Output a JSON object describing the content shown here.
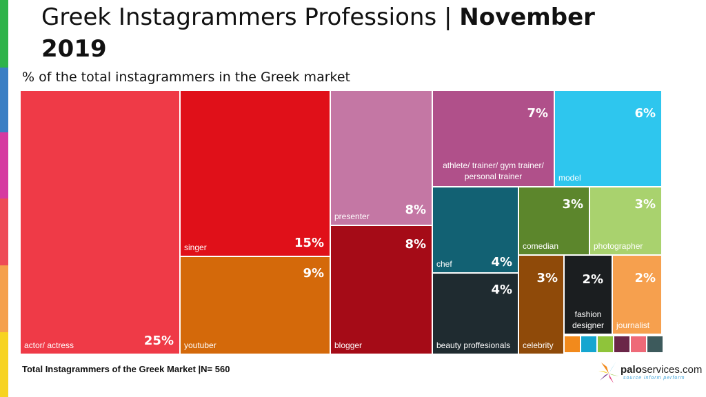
{
  "title_regular": "Greek Instagrammers Professions | ",
  "title_bold": "November 2019",
  "subtitle": "% of the total instagrammers in the Greek market",
  "footer": "Total Instagrammers of the Greek Market  |N= 560",
  "logo": {
    "name_bold": "palo",
    "name_rest": "services.com",
    "tagline": "source inform perform"
  },
  "side_stripe_colors": [
    "#2fb34a",
    "#3b7fc4",
    "#d63aa0",
    "#ee4b56",
    "#f5a04c",
    "#f7d321"
  ],
  "chart_data": {
    "type": "treemap",
    "title": "Greek Instagrammers Professions | November 2019",
    "subtitle": "% of the total instagrammers in the Greek market",
    "unit": "%",
    "items": [
      {
        "label": "actor/ actress",
        "value": 25,
        "display": "25%",
        "color": "#ef3a47"
      },
      {
        "label": "singer",
        "value": 15,
        "display": "15%",
        "color": "#e01019"
      },
      {
        "label": "youtuber",
        "value": 9,
        "display": "9%",
        "color": "#d4690a"
      },
      {
        "label": "presenter",
        "value": 8,
        "display": "8%",
        "color": "#c477a4"
      },
      {
        "label": "blogger",
        "value": 8,
        "display": "8%",
        "color": "#a50b17"
      },
      {
        "label": "athlete/ trainer/ gym trainer/ personal trainer",
        "value": 7,
        "display": "7%",
        "color": "#b0508a"
      },
      {
        "label": "model",
        "value": 6,
        "display": "6%",
        "color": "#2ec6ee"
      },
      {
        "label": "chef",
        "value": 4,
        "display": "4%",
        "color": "#126173"
      },
      {
        "label": "beauty proffesionals",
        "value": 4,
        "display": "4%",
        "color": "#1f2b30"
      },
      {
        "label": "comedian",
        "value": 3,
        "display": "3%",
        "color": "#5c862c"
      },
      {
        "label": "photographer",
        "value": 3,
        "display": "3%",
        "color": "#a9d26e"
      },
      {
        "label": "celebrity",
        "value": 3,
        "display": "3%",
        "color": "#8f4a09"
      },
      {
        "label": "fashion designer",
        "value": 2,
        "display": "2%",
        "color": "#1b1e20"
      },
      {
        "label": "journalist",
        "value": 2,
        "display": "2%",
        "color": "#f6a04e"
      },
      {
        "label": "",
        "value": null,
        "display": "",
        "color": "#f28a1c"
      },
      {
        "label": "",
        "value": null,
        "display": "",
        "color": "#15a6d0"
      },
      {
        "label": "",
        "value": null,
        "display": "",
        "color": "#8fc43a"
      },
      {
        "label": "",
        "value": null,
        "display": "",
        "color": "#6b2648"
      },
      {
        "label": "",
        "value": null,
        "display": "",
        "color": "#ee6a78"
      },
      {
        "label": "",
        "value": null,
        "display": "",
        "color": "#3d5a5c"
      }
    ]
  }
}
